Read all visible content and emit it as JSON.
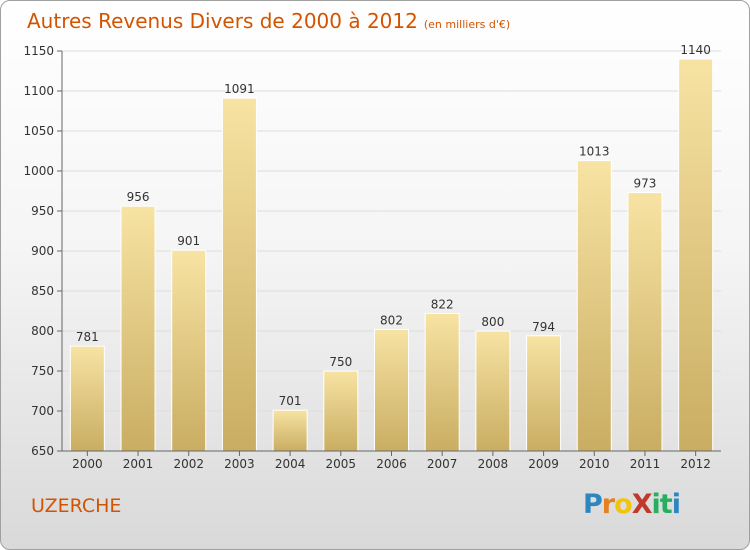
{
  "title": "Autres Revenus Divers de 2000 à 2012",
  "subtitle": "(en milliers d'€)",
  "city": "UZERCHE",
  "logo": "ProXiti",
  "colors": {
    "title": "#d35400",
    "bar_light": "#f7e3a3",
    "bar_dark": "#c9ad62",
    "grid": "#dddddd",
    "axis": "#666666"
  },
  "chart_data": {
    "type": "bar",
    "categories": [
      "2000",
      "2001",
      "2002",
      "2003",
      "2004",
      "2005",
      "2006",
      "2007",
      "2008",
      "2009",
      "2010",
      "2011",
      "2012"
    ],
    "values": [
      781,
      956,
      901,
      1091,
      701,
      750,
      802,
      822,
      800,
      794,
      1013,
      973,
      1140
    ],
    "ylim": [
      650,
      1150
    ],
    "yticks": [
      650,
      700,
      750,
      800,
      850,
      900,
      950,
      1000,
      1050,
      1100,
      1150
    ],
    "grid": true,
    "legend": "none"
  }
}
